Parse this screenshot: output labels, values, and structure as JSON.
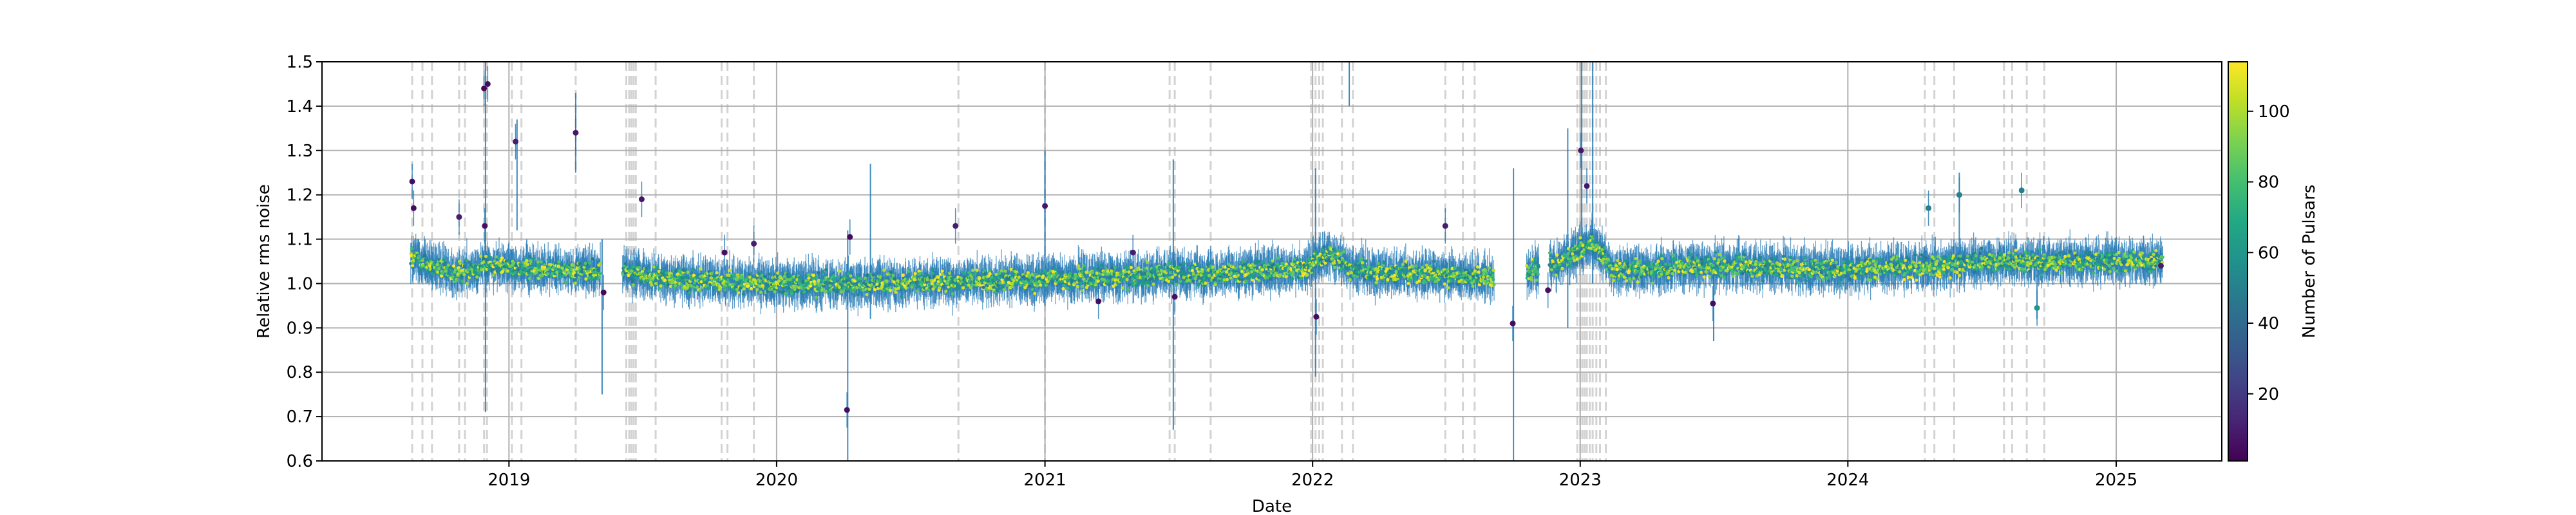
{
  "chart_data": {
    "type": "scatter",
    "xlabel": "Date",
    "ylabel": "Relative rms noise",
    "colorbar_label": "Number of Pulsars",
    "x_range": [
      "2018-04-21",
      "2025-05-25"
    ],
    "ylim": [
      0.6,
      1.5
    ],
    "x_ticks": [
      "2019-01-01",
      "2020-01-01",
      "2021-01-01",
      "2022-01-01",
      "2023-01-01",
      "2024-01-01",
      "2025-01-01"
    ],
    "x_tick_labels": [
      "2019",
      "2020",
      "2021",
      "2022",
      "2023",
      "2024",
      "2025"
    ],
    "y_ticks": [
      0.6,
      0.7,
      0.8,
      0.9,
      1.0,
      1.1,
      1.2,
      1.3,
      1.4,
      1.5
    ],
    "y_tick_labels": [
      "0.6",
      "0.7",
      "0.8",
      "0.9",
      "1.0",
      "1.1",
      "1.2",
      "1.3",
      "1.4",
      "1.5"
    ],
    "colorbar_range": [
      1,
      114
    ],
    "colorbar_ticks": [
      20,
      40,
      60,
      80,
      100
    ],
    "colorbar_tick_labels": [
      "20",
      "40",
      "60",
      "80",
      "100"
    ],
    "colormap": "viridis",
    "grid": true,
    "error_bar_color": "#1f77b4",
    "vline_color": "#b0b0b0",
    "data_start": "2018-08-20",
    "data_end": "2025-03-05",
    "baseline": [
      {
        "x": "2018-08-20",
        "y": 1.06
      },
      {
        "x": "2018-10-15",
        "y": 1.02
      },
      {
        "x": "2018-12-01",
        "y": 1.04
      },
      {
        "x": "2019-03-01",
        "y": 1.03
      },
      {
        "x": "2019-06-01",
        "y": 1.03
      },
      {
        "x": "2019-08-01",
        "y": 1.01
      },
      {
        "x": "2020-01-01",
        "y": 1.0
      },
      {
        "x": "2020-06-01",
        "y": 1.0
      },
      {
        "x": "2021-01-01",
        "y": 1.01
      },
      {
        "x": "2021-06-01",
        "y": 1.02
      },
      {
        "x": "2021-12-20",
        "y": 1.03
      },
      {
        "x": "2022-01-20",
        "y": 1.07
      },
      {
        "x": "2022-03-01",
        "y": 1.03
      },
      {
        "x": "2022-10-01",
        "y": 1.01
      },
      {
        "x": "2022-12-01",
        "y": 1.05
      },
      {
        "x": "2023-01-20",
        "y": 1.09
      },
      {
        "x": "2023-02-15",
        "y": 1.03
      },
      {
        "x": "2023-08-01",
        "y": 1.04
      },
      {
        "x": "2024-01-01",
        "y": 1.03
      },
      {
        "x": "2024-08-01",
        "y": 1.05
      },
      {
        "x": "2025-03-05",
        "y": 1.05
      }
    ],
    "outliers": [
      {
        "x": "2018-08-22",
        "y": 1.23,
        "n": 5
      },
      {
        "x": "2018-08-24",
        "y": 1.17,
        "n": 5
      },
      {
        "x": "2018-10-25",
        "y": 1.15,
        "n": 10
      },
      {
        "x": "2018-11-28",
        "y": 1.44,
        "n": 3
      },
      {
        "x": "2018-12-03",
        "y": 1.45,
        "n": 5
      },
      {
        "x": "2018-11-29",
        "y": 1.13,
        "n": 6
      },
      {
        "x": "2019-01-10",
        "y": 1.32,
        "n": 10
      },
      {
        "x": "2019-04-02",
        "y": 1.34,
        "n": 8
      },
      {
        "x": "2019-05-10",
        "y": 0.98,
        "n": 4
      },
      {
        "x": "2019-07-01",
        "y": 1.19,
        "n": 8
      },
      {
        "x": "2019-10-22",
        "y": 1.07,
        "n": 6
      },
      {
        "x": "2019-12-01",
        "y": 1.09,
        "n": 10
      },
      {
        "x": "2020-04-06",
        "y": 0.715,
        "n": 5
      },
      {
        "x": "2020-04-10",
        "y": 1.105,
        "n": 4
      },
      {
        "x": "2020-09-01",
        "y": 1.13,
        "n": 10
      },
      {
        "x": "2021-01-01",
        "y": 1.175,
        "n": 8
      },
      {
        "x": "2021-03-15",
        "y": 0.96,
        "n": 5
      },
      {
        "x": "2021-05-01",
        "y": 1.07,
        "n": 10
      },
      {
        "x": "2021-06-27",
        "y": 0.97,
        "n": 6
      },
      {
        "x": "2022-01-06",
        "y": 0.925,
        "n": 5
      },
      {
        "x": "2022-07-01",
        "y": 1.13,
        "n": 10
      },
      {
        "x": "2022-10-01",
        "y": 0.91,
        "n": 5
      },
      {
        "x": "2022-11-18",
        "y": 0.985,
        "n": 6
      },
      {
        "x": "2023-01-02",
        "y": 1.3,
        "n": 8
      },
      {
        "x": "2023-01-10",
        "y": 1.22,
        "n": 8
      },
      {
        "x": "2023-07-01",
        "y": 0.955,
        "n": 5
      },
      {
        "x": "2024-04-20",
        "y": 1.17,
        "n": 50
      },
      {
        "x": "2024-06-01",
        "y": 1.2,
        "n": 50
      },
      {
        "x": "2024-08-25",
        "y": 1.21,
        "n": 50
      },
      {
        "x": "2024-09-15",
        "y": 0.945,
        "n": 60
      },
      {
        "x": "2025-03-03",
        "y": 1.04,
        "n": 10
      }
    ],
    "spikes": [
      {
        "x": "2018-11-30",
        "lo": 0.71,
        "hi": 1.5
      },
      {
        "x": "2019-01-12",
        "lo": 1.12,
        "hi": 1.37
      },
      {
        "x": "2019-04-02",
        "lo": 1.25,
        "hi": 1.43
      },
      {
        "x": "2019-05-08",
        "lo": 0.75,
        "hi": 1.1
      },
      {
        "x": "2020-04-07",
        "lo": 0.6,
        "hi": 1.12
      },
      {
        "x": "2020-05-08",
        "lo": 0.92,
        "hi": 1.27
      },
      {
        "x": "2021-01-01",
        "lo": 0.95,
        "hi": 1.3
      },
      {
        "x": "2021-06-25",
        "lo": 0.67,
        "hi": 1.28
      },
      {
        "x": "2022-01-05",
        "lo": 0.79,
        "hi": 1.26
      },
      {
        "x": "2022-02-20",
        "lo": 1.4,
        "hi": 1.5
      },
      {
        "x": "2022-10-02",
        "lo": 0.6,
        "hi": 1.26
      },
      {
        "x": "2022-12-15",
        "lo": 0.9,
        "hi": 1.35
      },
      {
        "x": "2023-01-03",
        "lo": 1.05,
        "hi": 1.5
      },
      {
        "x": "2023-01-18",
        "lo": 1.0,
        "hi": 1.5
      },
      {
        "x": "2023-07-02",
        "lo": 0.87,
        "hi": 1.02
      },
      {
        "x": "2024-06-01",
        "lo": 1.02,
        "hi": 1.25
      },
      {
        "x": "2024-09-15",
        "lo": 0.92,
        "hi": 1.02
      }
    ],
    "vlines": [
      "2018-08-22",
      "2018-09-05",
      "2018-09-18",
      "2018-10-25",
      "2018-11-02",
      "2018-11-28",
      "2018-12-02",
      "2019-01-05",
      "2019-01-18",
      "2019-04-02",
      "2019-06-10",
      "2019-06-14",
      "2019-06-17",
      "2019-06-20",
      "2019-06-23",
      "2019-07-20",
      "2019-10-18",
      "2019-10-26",
      "2019-12-01",
      "2020-09-05",
      "2021-01-01",
      "2021-06-20",
      "2021-06-27",
      "2021-08-15",
      "2021-12-30",
      "2022-01-05",
      "2022-01-10",
      "2022-01-15",
      "2022-02-10",
      "2022-02-25",
      "2022-07-01",
      "2022-07-25",
      "2022-08-10",
      "2022-12-28",
      "2023-01-01",
      "2023-01-04",
      "2023-01-07",
      "2023-01-10",
      "2023-01-14",
      "2023-01-18",
      "2023-01-23",
      "2023-01-28",
      "2023-02-05",
      "2024-04-15",
      "2024-04-28",
      "2024-05-25",
      "2024-08-01",
      "2024-08-12",
      "2024-09-01",
      "2024-09-25"
    ]
  }
}
